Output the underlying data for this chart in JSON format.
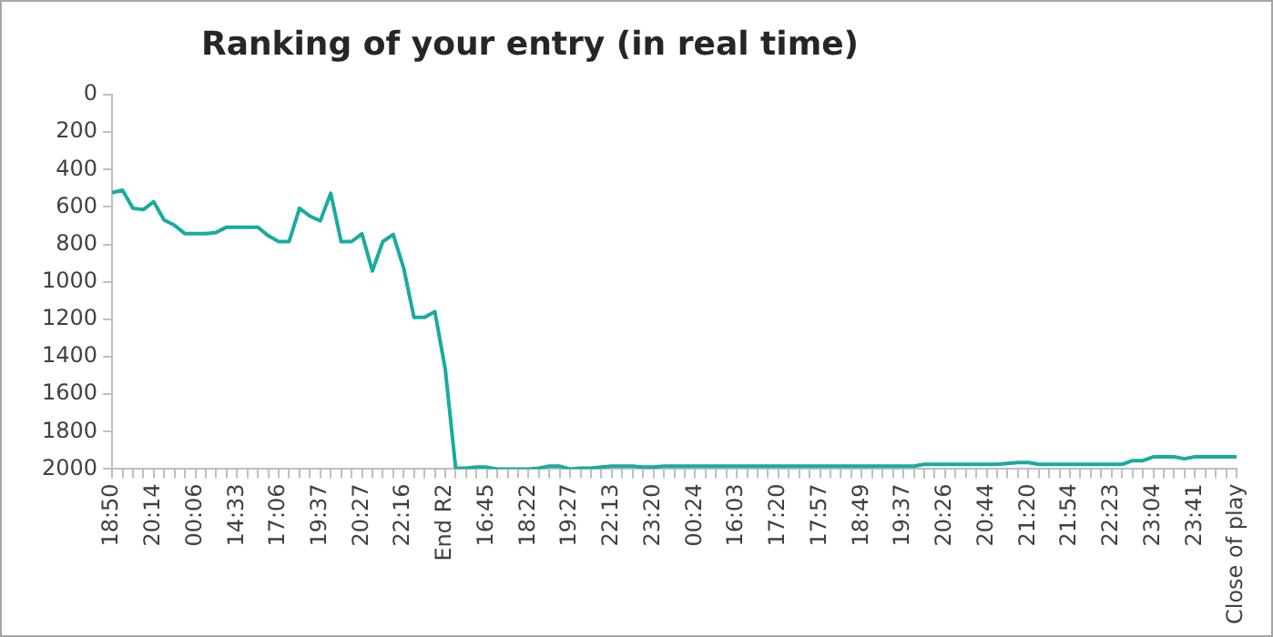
{
  "chart_data": {
    "type": "line",
    "title": "Ranking of your entry (in real time)",
    "categories": [
      "18:50",
      null,
      null,
      null,
      "20:14",
      null,
      null,
      null,
      "00:06",
      null,
      null,
      null,
      "14:33",
      null,
      null,
      null,
      "17:06",
      null,
      null,
      null,
      "19:37",
      null,
      null,
      null,
      "20:27",
      null,
      null,
      null,
      "22:16",
      null,
      null,
      null,
      "End R2",
      null,
      null,
      null,
      "16:45",
      null,
      null,
      null,
      "18:22",
      null,
      null,
      null,
      "19:27",
      null,
      null,
      null,
      "22:13",
      null,
      null,
      null,
      "23:20",
      null,
      null,
      null,
      "00:24",
      null,
      null,
      null,
      "16:03",
      null,
      null,
      null,
      "17:20",
      null,
      null,
      null,
      "17:57",
      null,
      null,
      null,
      "18:49",
      null,
      null,
      null,
      "19:37",
      null,
      null,
      null,
      "20:26",
      null,
      null,
      null,
      "20:44",
      null,
      null,
      null,
      "21:20",
      null,
      null,
      null,
      "21:54",
      null,
      null,
      null,
      "22:23",
      null,
      null,
      null,
      "23:04",
      null,
      null,
      null,
      "23:41",
      null,
      null,
      null,
      "Close of play"
    ],
    "series": [
      {
        "color": "#1aaba0",
        "values": [
          524,
          510,
          607,
          614,
          572,
          670,
          698,
          743,
          743,
          743,
          736,
          708,
          708,
          708,
          708,
          754,
          785,
          785,
          607,
          649,
          674,
          527,
          785,
          785,
          743,
          942,
          785,
          747,
          925,
          1190,
          1190,
          1159,
          1466,
          1995,
          1995,
          1990,
          1990,
          2000,
          2000,
          2000,
          2000,
          1995,
          1985,
          1985,
          2000,
          1995,
          1995,
          1990,
          1985,
          1985,
          1985,
          1990,
          1990,
          1985,
          1985,
          1985,
          1985,
          1985,
          1985,
          1985,
          1985,
          1985,
          1985,
          1985,
          1985,
          1985,
          1985,
          1985,
          1985,
          1985,
          1985,
          1985,
          1985,
          1985,
          1985,
          1985,
          1985,
          1985,
          1975,
          1975,
          1975,
          1975,
          1975,
          1975,
          1975,
          1975,
          1970,
          1965,
          1965,
          1975,
          1975,
          1975,
          1975,
          1975,
          1975,
          1975,
          1975,
          1975,
          1955,
          1955,
          1935,
          1935,
          1935,
          1945,
          1935,
          1935,
          1935,
          1935,
          1935
        ]
      }
    ],
    "ylim": [
      2000,
      0
    ],
    "yticks": [
      0,
      200,
      400,
      600,
      800,
      1000,
      1200,
      1400,
      1600,
      1800,
      2000
    ],
    "grid": false,
    "legend": false,
    "marker": "none",
    "line_style": "solid"
  }
}
